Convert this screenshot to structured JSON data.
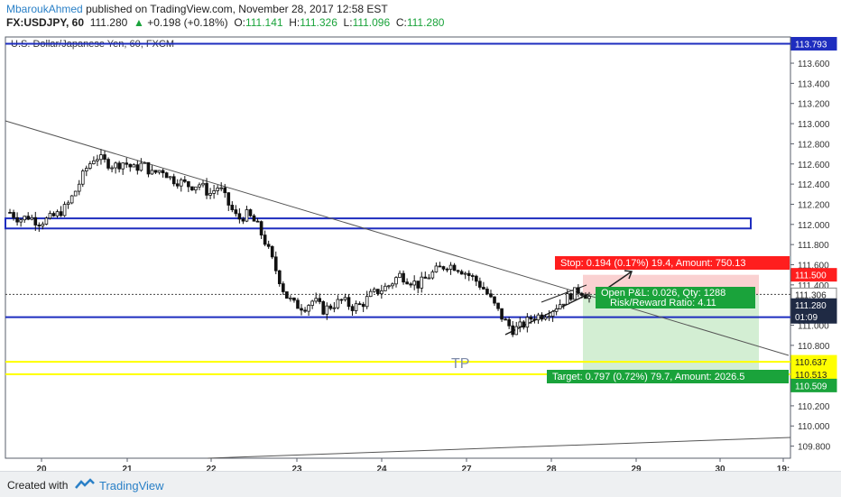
{
  "header": {
    "author": "MbaroukAhmed",
    "published": "published on TradingView.com, November 28, 2017 12:58 EST",
    "symbol": "FX:USDJPY, 60",
    "price": "111.280",
    "arrow": "▲",
    "change": "+0.198 (+0.18%)",
    "o_label": "O:",
    "o_value": "111.141",
    "h_label": "H:",
    "h_value": "111.326",
    "l_label": "L:",
    "l_value": "111.096",
    "c_label": "C:",
    "c_value": "111.280"
  },
  "chart": {
    "title": "U.S. Dollar/Japanese Yen, 60, FXCM",
    "tp_label": "TP",
    "stop_label": "Stop: 0.194 (0.17%) 19.4, Amount: 750.13",
    "pnl_label": "Open P&L: 0.026, Qty: 1288",
    "rr_label": "Risk/Reward Ratio: 4.11",
    "target_label": "Target: 0.797 (0.72%) 79.7, Amount: 2026.5",
    "countdown": "01:09"
  },
  "chart_data": {
    "type": "candlestick",
    "symbol": "USDJPY",
    "timeframe": "60",
    "ylim": [
      109.68,
      113.86
    ],
    "y_ticks": [
      "113.600",
      "113.400",
      "113.200",
      "113.000",
      "112.800",
      "112.600",
      "112.400",
      "112.200",
      "112.000",
      "111.800",
      "111.600",
      "111.400",
      "111.200",
      "111.000",
      "110.800",
      "110.600",
      "110.400",
      "110.200",
      "110.000",
      "109.800"
    ],
    "x_ticks": [
      "20",
      "21",
      "22",
      "23",
      "24",
      "27",
      "28",
      "29",
      "30",
      "19:"
    ],
    "close_path": [
      112.12,
      112.05,
      112.08,
      112.02,
      112.05,
      112.1,
      112.18,
      112.35,
      112.55,
      112.68,
      112.62,
      112.58,
      112.62,
      112.55,
      112.6,
      112.5,
      112.55,
      112.45,
      112.42,
      112.38,
      112.4,
      112.3,
      112.38,
      112.2,
      112.05,
      112.1,
      112.0,
      111.8,
      111.55,
      111.3,
      111.2,
      111.18,
      111.25,
      111.15,
      111.2,
      111.25,
      111.18,
      111.2,
      111.3,
      111.35,
      111.4,
      111.5,
      111.45,
      111.4,
      111.48,
      111.55,
      111.6,
      111.58,
      111.52,
      111.45,
      111.35,
      111.2,
      111.05,
      110.95,
      111.0,
      111.08,
      111.1,
      111.15,
      111.22,
      111.3,
      111.35,
      111.28
    ],
    "price_tags": [
      {
        "value": "113.793",
        "bg": "#1e2dbf",
        "fg": "#ffffff"
      },
      {
        "value": "111.500",
        "bg": "#ff1e1e",
        "fg": "#ffffff"
      },
      {
        "value": "111.306",
        "bg": "#ffffff",
        "fg": "#222222"
      },
      {
        "value": "111.280",
        "bg": "#1f2a44",
        "fg": "#ffffff"
      },
      {
        "value": "01:09",
        "bg": "#1f2a44",
        "fg": "#ffffff"
      },
      {
        "value": "110.637",
        "bg": "#ffff00",
        "fg": "#222222"
      },
      {
        "value": "110.513",
        "bg": "#ffff00",
        "fg": "#222222"
      },
      {
        "value": "110.509",
        "bg": "#1aa33b",
        "fg": "#ffffff"
      }
    ],
    "levels": {
      "resistance_top": 113.793,
      "zone_upper": [
        111.96,
        112.06
      ],
      "support": 111.08,
      "tp_lines": [
        110.637,
        110.513
      ],
      "entry": 111.306,
      "stop": 111.5,
      "target": 110.509
    },
    "colors": {
      "level": "#1e2dbf",
      "tp": "#ffff00",
      "stop": "#ff1e1e",
      "target": "#1aa33b"
    }
  },
  "footer": {
    "created": "Created with",
    "brand": "TradingView"
  }
}
